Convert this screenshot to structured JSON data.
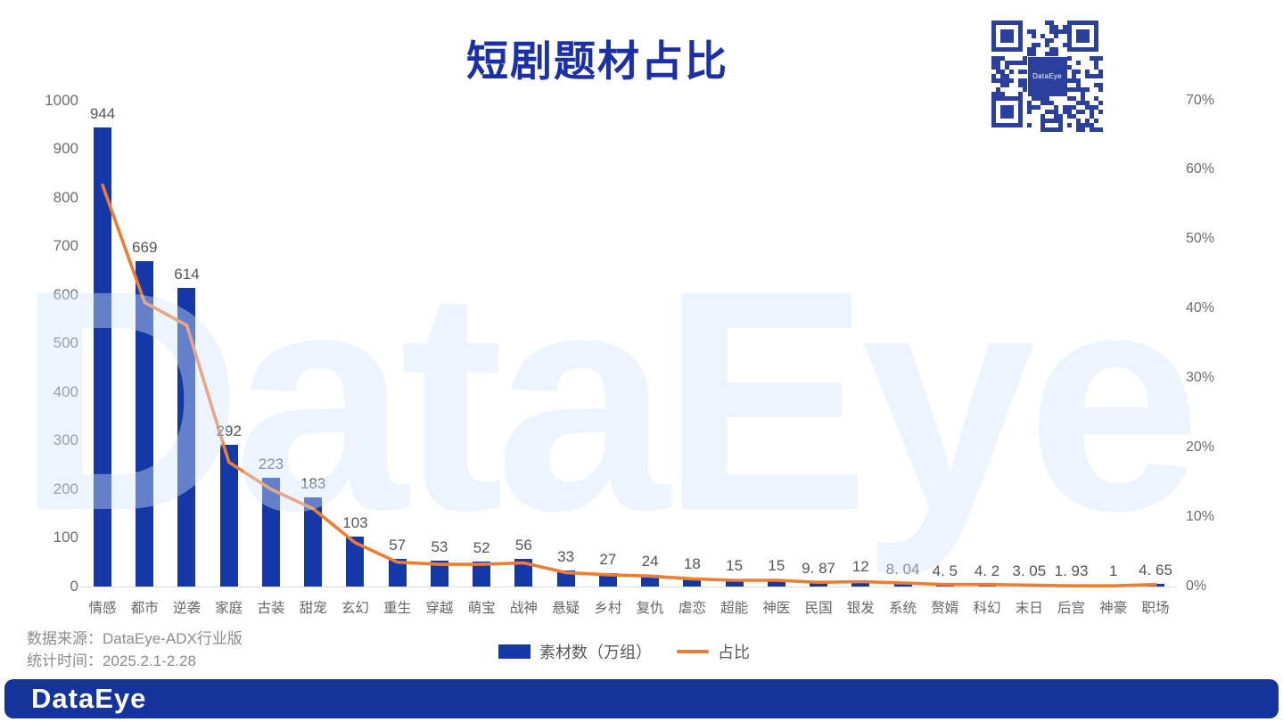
{
  "title": "短剧题材占比",
  "watermark": "DataEye",
  "logo": "DataEye",
  "qr_center_label": "DataEye",
  "legend": {
    "bar_label": "素材数（万组）",
    "line_label": "占比"
  },
  "footer": {
    "source": "数据来源：DataEye-ADX行业版",
    "period": "统计时间：2025.2.1-2.28"
  },
  "colors": {
    "bar": "#1438a8",
    "line": "#ed7d33",
    "title": "#1b2fa8",
    "banner": "#14339b",
    "axis_text": "#6e6e6e",
    "data_label": "#565656",
    "watermark": "#eef3fb"
  },
  "chart_data": {
    "type": "bar",
    "subtype": "combo-bar-line-dual-axis",
    "title": "短剧题材占比",
    "categories": [
      "情感",
      "都市",
      "逆袭",
      "家庭",
      "古装",
      "甜宠",
      "玄幻",
      "重生",
      "穿越",
      "萌宝",
      "战神",
      "悬疑",
      "乡村",
      "复仇",
      "虐恋",
      "超能",
      "神医",
      "民国",
      "银发",
      "系统",
      "赘婿",
      "科幻",
      "末日",
      "后宫",
      "神豪",
      "职场"
    ],
    "series": [
      {
        "name": "素材数（万组）",
        "type": "bar",
        "axis": "left",
        "values": [
          944,
          669,
          614,
          292,
          223,
          183,
          103,
          57,
          53,
          52,
          56,
          33,
          27,
          24,
          18,
          15,
          15,
          9.87,
          12,
          8.04,
          4.5,
          4.2,
          3.05,
          1.93,
          1,
          4.65
        ],
        "labels": [
          "944",
          "669",
          "614",
          "292",
          "223",
          "183",
          "103",
          "57",
          "53",
          "52",
          "56",
          "33",
          "27",
          "24",
          "18",
          "15",
          "15",
          "9. 87",
          "12",
          "8. 04",
          "4. 5",
          "4. 2",
          "3. 05",
          "1. 93",
          "1",
          "4. 65"
        ]
      },
      {
        "name": "占比",
        "type": "line",
        "axis": "right",
        "values_pct_estimated": [
          57.8,
          40.9,
          37.6,
          17.9,
          14.0,
          11.2,
          6.3,
          3.5,
          3.2,
          3.2,
          3.4,
          2.0,
          1.7,
          1.5,
          1.1,
          0.9,
          0.9,
          0.6,
          0.7,
          0.5,
          0.3,
          0.3,
          0.2,
          0.1,
          0.1,
          0.3
        ]
      }
    ],
    "left_axis": {
      "min": 0,
      "max": 1000,
      "step": 100,
      "ticks": [
        "1000",
        "900",
        "800",
        "700",
        "600",
        "500",
        "400",
        "300",
        "200",
        "100",
        "0"
      ]
    },
    "right_axis": {
      "min": 0,
      "max": 70,
      "step": 10,
      "ticks": [
        "70%",
        "60%",
        "50%",
        "40%",
        "30%",
        "20%",
        "10%",
        "0%"
      ]
    },
    "grid": false,
    "legend_position": "bottom"
  }
}
